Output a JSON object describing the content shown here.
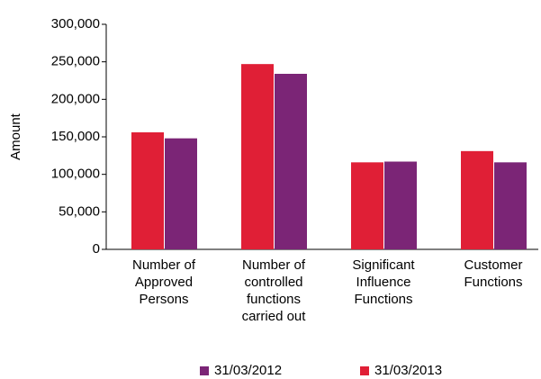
{
  "chart_data": {
    "type": "bar",
    "y_label": "Amount",
    "categories": [
      "Number of Approved Persons",
      "Number of controlled functions carried out",
      "Significant Influence Functions",
      "Customer Functions"
    ],
    "series": [
      {
        "name": "31/03/2012",
        "color": "#7b2576",
        "values": [
          148000,
          234000,
          117000,
          116000
        ]
      },
      {
        "name": "31/03/2013",
        "color": "#e01f36",
        "values": [
          156000,
          247000,
          116000,
          131000
        ]
      }
    ],
    "ylim": [
      0,
      300000
    ],
    "yticks": [
      0,
      {
        "value": 50000,
        "label": "50,000"
      },
      {
        "value": 100000,
        "label": "100,000"
      },
      {
        "value": 150000,
        "label": "150,000"
      },
      {
        "value": 200000,
        "label": "200,000"
      },
      {
        "value": 250000,
        "label": "250,000"
      },
      {
        "value": 300000,
        "label": "300,000"
      }
    ],
    "legend": "bottom"
  }
}
